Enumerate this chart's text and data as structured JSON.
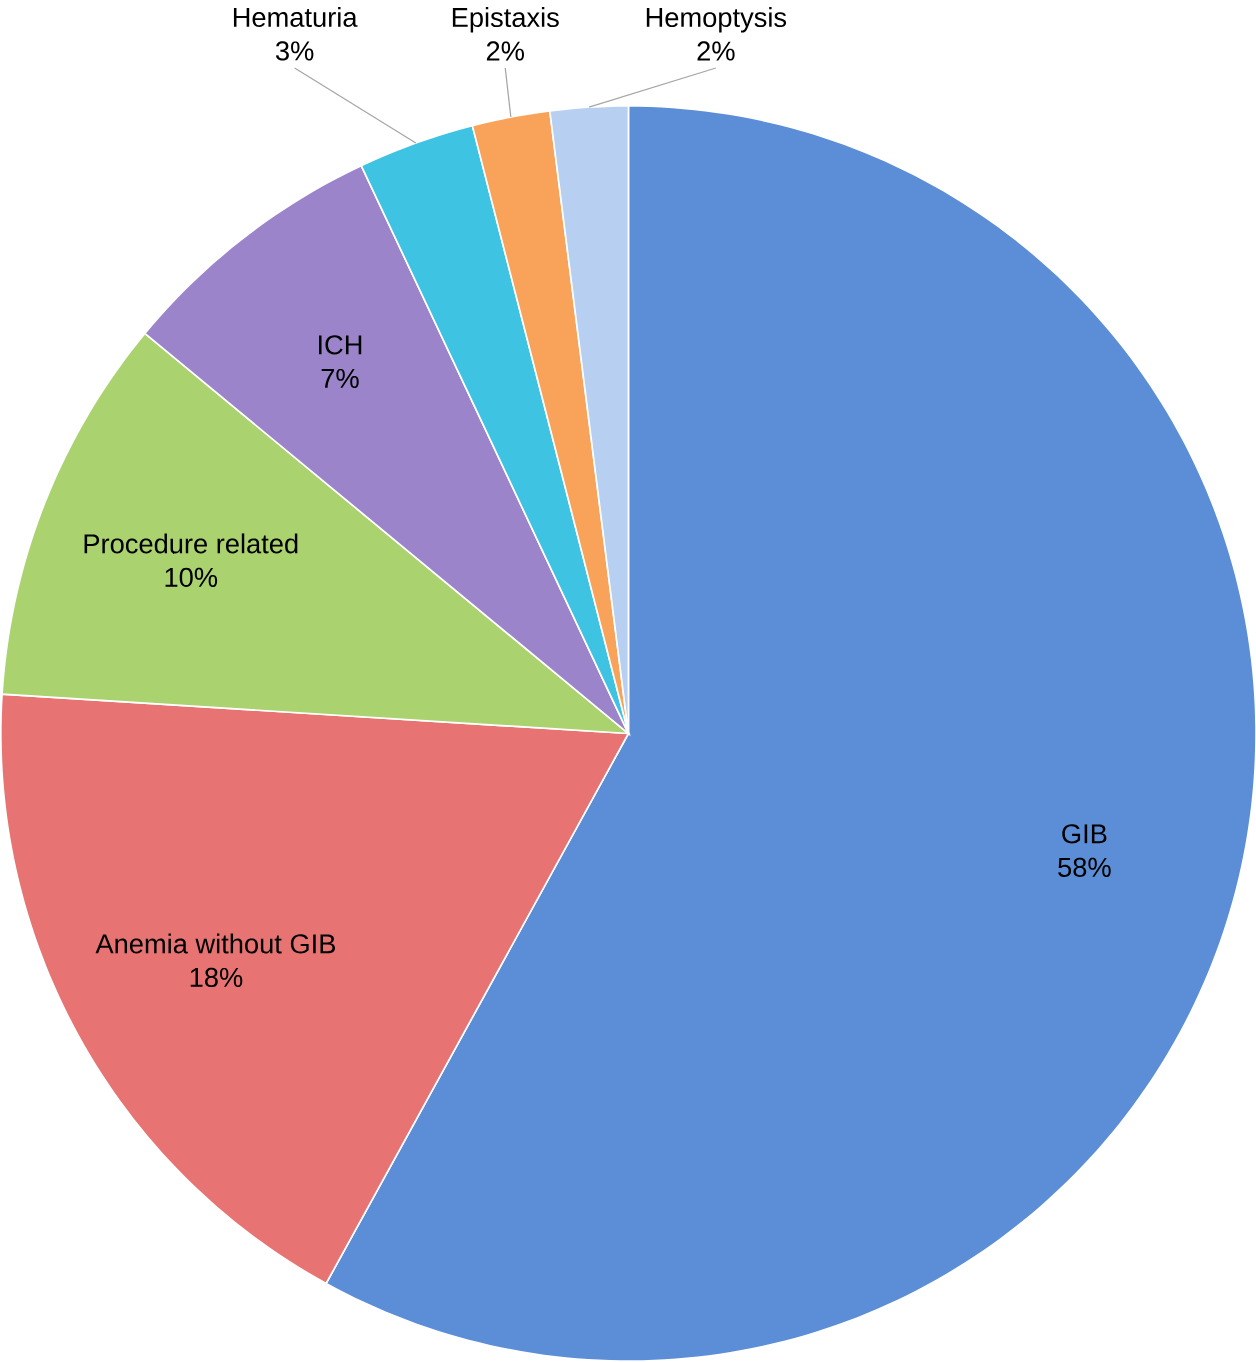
{
  "chart_data": {
    "type": "pie",
    "categories": [
      "GIB",
      "Anemia without GIB",
      "Procedure related",
      "ICH",
      "Hematuria",
      "Epistaxis",
      "Hemoptysis"
    ],
    "values": [
      58,
      18,
      10,
      7,
      3,
      2,
      2
    ],
    "value_labels": [
      "58%",
      "18%",
      "10%",
      "7%",
      "3%",
      "2%",
      "2%"
    ],
    "colors": [
      "#5b8ed6",
      "#e77472",
      "#aad26e",
      "#9b84c9",
      "#3fc3e3",
      "#f9a25a",
      "#b7d0f2"
    ]
  }
}
